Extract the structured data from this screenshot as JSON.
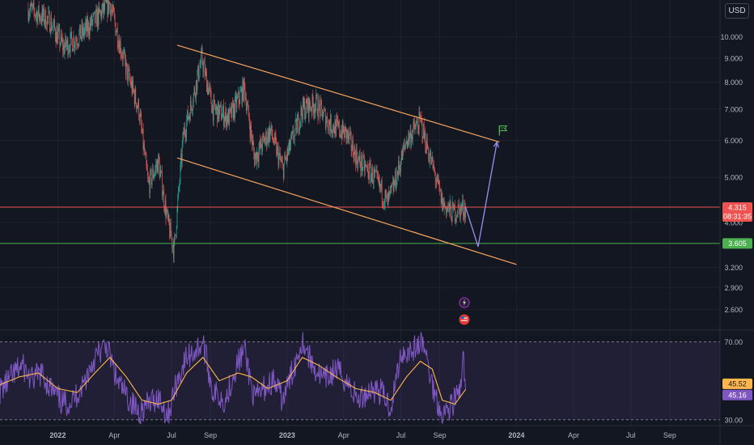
{
  "currency": "USD",
  "chart_data": [
    {
      "type": "candlestick",
      "title": "",
      "y_scale": "log",
      "ylim": [
        2.35,
        12.0
      ],
      "y_ticks": [
        10.0,
        9.0,
        8.0,
        7.0,
        6.0,
        5.0,
        4.0,
        3.2,
        2.9,
        2.6
      ],
      "y_tick_labels": [
        "10.000",
        "9.000",
        "8.000",
        "7.000",
        "6.000",
        "5.000",
        "4.000",
        "3.200",
        "2.900",
        "2.600"
      ],
      "x_ticks": [
        "2022",
        "Apr",
        "Jul",
        "Sep",
        "2023",
        "Apr",
        "Jul",
        "Sep",
        "2024",
        "Apr",
        "Jul",
        "Sep"
      ],
      "x_tick_dates": [
        "2022-01-01",
        "2022-04-01",
        "2022-07-01",
        "2022-09-01",
        "2023-01-01",
        "2023-04-01",
        "2023-07-01",
        "2023-09-01",
        "2024-01-01",
        "2024-04-01",
        "2024-07-01",
        "2024-09-01"
      ],
      "x_range": [
        "2021-10-01",
        "2024-11-20"
      ],
      "up_color": "#26a69a",
      "down_color": "#ef5350",
      "price_path": [
        [
          "2021-11-15",
          11.5
        ],
        [
          "2021-12-20",
          10.8
        ],
        [
          "2022-01-10",
          9.5
        ],
        [
          "2022-02-10",
          10.2
        ],
        [
          "2022-03-10",
          11.2
        ],
        [
          "2022-03-25",
          11.8
        ],
        [
          "2022-04-20",
          8.5
        ],
        [
          "2022-05-10",
          7.0
        ],
        [
          "2022-05-25",
          4.8
        ],
        [
          "2022-06-10",
          5.4
        ],
        [
          "2022-06-25",
          4.0
        ],
        [
          "2022-07-05",
          3.5
        ],
        [
          "2022-07-20",
          6.2
        ],
        [
          "2022-08-05",
          7.5
        ],
        [
          "2022-08-18",
          9.0
        ],
        [
          "2022-09-05",
          7.0
        ],
        [
          "2022-10-01",
          6.7
        ],
        [
          "2022-10-25",
          7.8
        ],
        [
          "2022-11-10",
          5.5
        ],
        [
          "2022-12-05",
          6.3
        ],
        [
          "2022-12-25",
          5.2
        ],
        [
          "2023-01-25",
          7.0
        ],
        [
          "2023-02-15",
          7.2
        ],
        [
          "2023-03-10",
          6.5
        ],
        [
          "2023-04-05",
          6.2
        ],
        [
          "2023-04-25",
          5.4
        ],
        [
          "2023-05-20",
          5.0
        ],
        [
          "2023-06-10",
          4.4
        ],
        [
          "2023-06-20",
          4.8
        ],
        [
          "2023-07-10",
          6.0
        ],
        [
          "2023-08-01",
          6.6
        ],
        [
          "2023-08-20",
          5.3
        ],
        [
          "2023-09-05",
          4.4
        ],
        [
          "2023-09-20",
          4.2
        ],
        [
          "2023-10-12",
          4.315
        ]
      ],
      "last_price": "4.315",
      "last_price_color": "#ef5350",
      "countdown": "08:31:35",
      "horizontal_levels": [
        {
          "value": 4.315,
          "color": "#ef5350"
        },
        {
          "value": 3.605,
          "label": "3.605",
          "color": "#4caf50"
        }
      ],
      "channel": {
        "color": "#f7a35c",
        "upper": [
          [
            "2022-07-10",
            9.6
          ],
          [
            "2023-12-05",
            5.95
          ]
        ],
        "lower": [
          [
            "2022-07-10",
            5.5
          ],
          [
            "2024-01-01",
            3.25
          ]
        ]
      },
      "projection": {
        "color": "#9c8ef0",
        "points": [
          [
            "2023-10-12",
            4.315
          ],
          [
            "2023-11-01",
            3.55
          ],
          [
            "2023-12-01",
            5.95
          ]
        ]
      },
      "flag_icon": "target-flag-icon",
      "event_icons": [
        "dividend-lightning-icon",
        "us-flag-event-icon"
      ]
    },
    {
      "type": "line",
      "title": "",
      "indicator": "RSI",
      "ylim": [
        27,
        76
      ],
      "levels": [
        70.0,
        30.0
      ],
      "level_labels": [
        "70.00",
        "30.00"
      ],
      "band_color": "#7e57c2",
      "series": [
        {
          "color": "#7e57c2",
          "last_label": "45.16",
          "points": [
            [
              "2021-10-01",
              45
            ],
            [
              "2021-10-20",
              52
            ],
            [
              "2021-11-05",
              58
            ],
            [
              "2021-11-20",
              50
            ],
            [
              "2021-12-05",
              54
            ],
            [
              "2021-12-25",
              44
            ],
            [
              "2022-01-10",
              38
            ],
            [
              "2022-01-25",
              40
            ],
            [
              "2022-02-10",
              48
            ],
            [
              "2022-03-01",
              62
            ],
            [
              "2022-03-20",
              68
            ],
            [
              "2022-04-05",
              50
            ],
            [
              "2022-04-25",
              40
            ],
            [
              "2022-05-10",
              34
            ],
            [
              "2022-05-25",
              38
            ],
            [
              "2022-06-10",
              42
            ],
            [
              "2022-06-25",
              32
            ],
            [
              "2022-07-10",
              50
            ],
            [
              "2022-07-25",
              62
            ],
            [
              "2022-08-10",
              66
            ],
            [
              "2022-08-20",
              70
            ],
            [
              "2022-09-05",
              44
            ],
            [
              "2022-09-25",
              40
            ],
            [
              "2022-10-10",
              56
            ],
            [
              "2022-10-25",
              66
            ],
            [
              "2022-11-10",
              40
            ],
            [
              "2022-11-25",
              46
            ],
            [
              "2022-12-10",
              50
            ],
            [
              "2022-12-25",
              40
            ],
            [
              "2023-01-15",
              60
            ],
            [
              "2023-01-25",
              72
            ],
            [
              "2023-02-10",
              58
            ],
            [
              "2023-03-01",
              50
            ],
            [
              "2023-03-20",
              56
            ],
            [
              "2023-04-05",
              50
            ],
            [
              "2023-04-25",
              40
            ],
            [
              "2023-05-15",
              46
            ],
            [
              "2023-06-01",
              44
            ],
            [
              "2023-06-15",
              36
            ],
            [
              "2023-07-01",
              64
            ],
            [
              "2023-07-20",
              66
            ],
            [
              "2023-08-05",
              70
            ],
            [
              "2023-08-20",
              48
            ],
            [
              "2023-09-05",
              32
            ],
            [
              "2023-09-20",
              38
            ],
            [
              "2023-10-05",
              46
            ],
            [
              "2023-10-08",
              62
            ],
            [
              "2023-10-12",
              45.16
            ]
          ]
        },
        {
          "color": "#ffb74d",
          "last_label": "45.52",
          "points": [
            [
              "2021-10-01",
              48
            ],
            [
              "2021-11-01",
              52
            ],
            [
              "2021-12-01",
              54
            ],
            [
              "2022-01-01",
              46
            ],
            [
              "2022-02-01",
              44
            ],
            [
              "2022-03-01",
              54
            ],
            [
              "2022-03-25",
              62
            ],
            [
              "2022-04-20",
              52
            ],
            [
              "2022-05-15",
              40
            ],
            [
              "2022-06-10",
              38
            ],
            [
              "2022-07-01",
              40
            ],
            [
              "2022-07-25",
              54
            ],
            [
              "2022-08-20",
              62
            ],
            [
              "2022-09-15",
              50
            ],
            [
              "2022-10-15",
              54
            ],
            [
              "2022-11-05",
              52
            ],
            [
              "2022-12-01",
              46
            ],
            [
              "2023-01-01",
              50
            ],
            [
              "2023-01-25",
              62
            ],
            [
              "2023-02-20",
              58
            ],
            [
              "2023-03-20",
              52
            ],
            [
              "2023-04-20",
              46
            ],
            [
              "2023-05-20",
              44
            ],
            [
              "2023-06-15",
              40
            ],
            [
              "2023-07-10",
              52
            ],
            [
              "2023-08-01",
              60
            ],
            [
              "2023-08-20",
              56
            ],
            [
              "2023-09-05",
              40
            ],
            [
              "2023-09-25",
              38
            ],
            [
              "2023-10-12",
              45.52
            ]
          ]
        }
      ]
    }
  ]
}
